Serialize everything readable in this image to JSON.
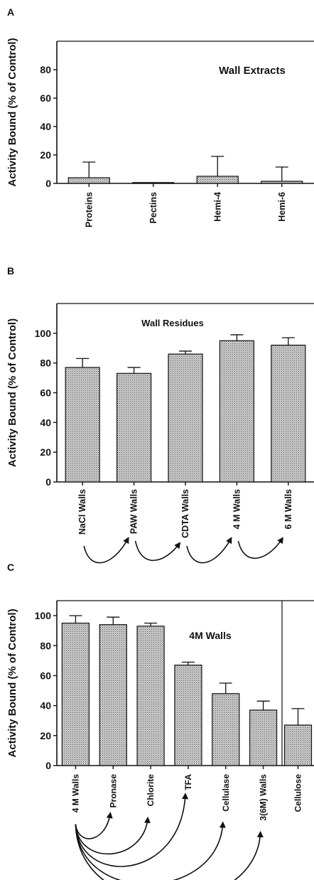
{
  "chart_data": [
    {
      "panel": "A",
      "type": "bar",
      "title": "Wall Extracts",
      "ylabel": "Activity Bound (% of Control)",
      "ylim": [
        0,
        100
      ],
      "yticks": [
        0,
        20,
        40,
        60,
        80
      ],
      "categories": [
        "Proteins",
        "Pectins",
        "Hemi-4",
        "Hemi-6"
      ],
      "values": [
        4,
        0.5,
        5,
        1.5
      ],
      "errors": [
        11,
        0,
        14,
        10
      ],
      "grid": false
    },
    {
      "panel": "B",
      "type": "bar",
      "title": "Wall Residues",
      "ylabel": "Activity Bound (% of Control)",
      "ylim": [
        0,
        120
      ],
      "yticks": [
        0,
        20,
        40,
        60,
        80,
        100
      ],
      "categories": [
        "NaCl Walls",
        "PAW Walls",
        "CDTA Walls",
        "4 M Walls",
        "6 M Walls"
      ],
      "values": [
        77,
        73,
        86,
        95,
        92
      ],
      "errors": [
        6,
        4,
        2,
        4,
        5
      ],
      "arrows": [
        [
          0,
          1
        ],
        [
          1,
          2
        ],
        [
          2,
          3
        ],
        [
          3,
          4
        ]
      ],
      "grid": false
    },
    {
      "panel": "C",
      "type": "bar",
      "title": "4M Walls",
      "ylabel": "Activity Bound (% of Control)",
      "ylim": [
        0,
        110
      ],
      "yticks": [
        0,
        20,
        40,
        60,
        80,
        100
      ],
      "categories": [
        "4 M Walls",
        "Pronase",
        "Chlorite",
        "TFA",
        "Cellulase",
        "3(6M) Walls",
        "Cellulose"
      ],
      "values": [
        95,
        94,
        93,
        67,
        48,
        37,
        27
      ],
      "errors": [
        5,
        5,
        2,
        2,
        7,
        6,
        11
      ],
      "arrows": [
        [
          0,
          1
        ],
        [
          0,
          2
        ],
        [
          0,
          3
        ],
        [
          0,
          4
        ],
        [
          0,
          5
        ]
      ],
      "grid": false
    }
  ]
}
